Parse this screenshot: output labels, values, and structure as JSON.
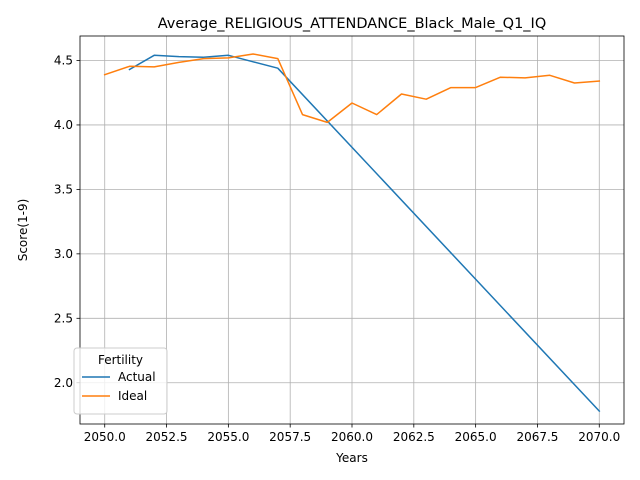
{
  "chart_data": {
    "type": "line",
    "title": "Average_RELIGIOUS_ATTENDANCE_Black_Male_Q1_IQ",
    "xlabel": "Years",
    "ylabel": "Score(1-9)",
    "xlim": [
      2049.0,
      2071.0
    ],
    "ylim": [
      1.68,
      4.69
    ],
    "xticks": [
      2050.0,
      2052.5,
      2055.0,
      2057.5,
      2060.0,
      2062.5,
      2065.0,
      2067.5,
      2070.0
    ],
    "xtick_labels": [
      "2050.0",
      "2052.5",
      "2055.0",
      "2057.5",
      "2060.0",
      "2062.5",
      "2065.0",
      "2067.5",
      "2070.0"
    ],
    "yticks": [
      2.0,
      2.5,
      3.0,
      3.5,
      4.0,
      4.5
    ],
    "ytick_labels": [
      "2.0",
      "2.5",
      "3.0",
      "3.5",
      "4.0",
      "4.5"
    ],
    "grid": true,
    "legend": {
      "title": "Fertility",
      "placement": "lower-left"
    },
    "series": [
      {
        "name": "Actual",
        "color": "#1f77b4",
        "x": [
          2051,
          2052,
          2053,
          2054,
          2055,
          2056,
          2057,
          2070
        ],
        "y": [
          4.43,
          4.54,
          4.53,
          4.525,
          4.54,
          4.49,
          4.44,
          1.78
        ]
      },
      {
        "name": "Ideal",
        "color": "#ff7f0e",
        "x": [
          2050,
          2051,
          2052,
          2053,
          2054,
          2055,
          2056,
          2057,
          2058,
          2059,
          2060,
          2061,
          2062,
          2063,
          2064,
          2065,
          2066,
          2067,
          2068,
          2069,
          2070
        ],
        "y": [
          4.39,
          4.455,
          4.45,
          4.485,
          4.515,
          4.52,
          4.55,
          4.515,
          4.08,
          4.02,
          4.17,
          4.08,
          4.24,
          4.2,
          4.29,
          4.29,
          4.37,
          4.365,
          4.385,
          4.325,
          4.34
        ]
      }
    ]
  }
}
